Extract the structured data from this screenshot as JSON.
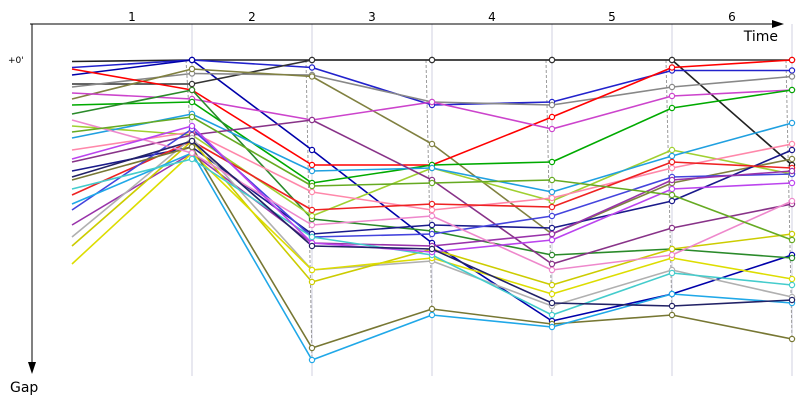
{
  "chart_data": {
    "type": "line",
    "title": "",
    "xlabel": "Time",
    "ylabel": "Gap",
    "y_zero_label": "+0'",
    "lap_labels": [
      "1",
      "2",
      "3",
      "4",
      "5",
      "6"
    ],
    "x": [
      0,
      1,
      2,
      3,
      4,
      5,
      6
    ],
    "ylim": [
      0,
      100
    ],
    "y_inverted": true,
    "grid": true,
    "series": [
      {
        "color": "#222222",
        "values": [
          0.5,
          0.0,
          0.0,
          0.0,
          0.0,
          0.0,
          35.0
        ]
      },
      {
        "color": "#2222cc",
        "values": [
          2.5,
          0.0,
          2.5,
          15.0,
          14.0,
          3.5,
          3.5
        ]
      },
      {
        "color": "#0000aa",
        "values": [
          5.0,
          0.0,
          30.0,
          61.0,
          87.0,
          78.0,
          65.0
        ]
      },
      {
        "color": "#333333",
        "values": [
          8.0,
          8.0,
          0.0,
          0.0,
          0.0,
          0.0,
          0.0
        ]
      },
      {
        "color": "#888888",
        "values": [
          9.0,
          4.5,
          5.0,
          14.0,
          15.0,
          9.0,
          5.5
        ]
      },
      {
        "color": "#808040",
        "values": [
          13.0,
          3.0,
          5.5,
          28.0,
          58.0,
          41.0,
          33.0
        ]
      },
      {
        "color": "#ff0000",
        "values": [
          3.0,
          10.0,
          35.0,
          35.0,
          19.0,
          2.5,
          0.0
        ]
      },
      {
        "color": "#cc44cc",
        "values": [
          11.0,
          13.0,
          20.0,
          14.0,
          23.0,
          12.0,
          10.0
        ]
      },
      {
        "color": "#00aa00",
        "values": [
          15.0,
          14.0,
          41.0,
          35.0,
          34.0,
          16.0,
          10.0
        ]
      },
      {
        "color": "#2a8a2a",
        "values": [
          18.0,
          10.0,
          53.0,
          57.0,
          65.0,
          63.0,
          66.0
        ]
      },
      {
        "color": "#a0d030",
        "values": [
          22.0,
          25.0,
          52.0,
          36.0,
          47.0,
          30.0,
          38.0
        ]
      },
      {
        "color": "#20a0e0",
        "values": [
          26.0,
          18.0,
          37.0,
          36.0,
          44.0,
          32.0,
          21.0
        ]
      },
      {
        "color": "#ff88aa",
        "values": [
          30.0,
          24.0,
          44.0,
          50.0,
          46.0,
          36.0,
          28.0
        ]
      },
      {
        "color": "#883388",
        "values": [
          34.0,
          25.0,
          20.0,
          40.0,
          68.0,
          56.0,
          48.0
        ]
      },
      {
        "color": "#1a1a8a",
        "values": [
          37.0,
          29.0,
          58.0,
          55.0,
          56.0,
          47.0,
          30.0
        ]
      },
      {
        "color": "#ee2222",
        "values": [
          45.0,
          27.0,
          50.0,
          48.0,
          49.0,
          34.0,
          36.0
        ]
      },
      {
        "color": "#4444dd",
        "values": [
          50.0,
          23.0,
          59.0,
          58.0,
          52.0,
          39.0,
          38.0
        ]
      },
      {
        "color": "#9933aa",
        "values": [
          55.0,
          31.0,
          61.0,
          62.0,
          58.0,
          40.0,
          37.0
        ]
      },
      {
        "color": "#b0b0b0",
        "values": [
          59.0,
          26.0,
          70.0,
          67.0,
          82.0,
          70.0,
          79.0
        ]
      },
      {
        "color": "#cccc00",
        "values": [
          62.0,
          27.0,
          74.0,
          63.0,
          75.0,
          63.0,
          58.0
        ]
      },
      {
        "color": "#dddd00",
        "values": [
          68.0,
          31.0,
          70.0,
          66.0,
          78.0,
          66.0,
          73.0
        ]
      },
      {
        "color": "#777733",
        "values": [
          40.0,
          29.0,
          96.0,
          83.0,
          88.0,
          85.0,
          93.0
        ]
      },
      {
        "color": "#20a8e8",
        "values": [
          48.0,
          31.0,
          100.0,
          85.0,
          89.0,
          78.0,
          81.0
        ]
      },
      {
        "color": "#44cccc",
        "values": [
          43.0,
          33.0,
          59.0,
          65.0,
          85.0,
          71.0,
          75.0
        ]
      },
      {
        "color": "#ee88cc",
        "values": [
          20.0,
          31.0,
          55.0,
          52.0,
          70.0,
          65.0,
          47.0
        ]
      },
      {
        "color": "#bb44ee",
        "values": [
          33.0,
          22.0,
          61.0,
          64.0,
          60.0,
          43.0,
          41.0
        ]
      },
      {
        "color": "#222266",
        "values": [
          39.0,
          27.0,
          62.0,
          63.0,
          81.0,
          82.0,
          80.0
        ]
      },
      {
        "color": "#66aa22",
        "values": [
          24.0,
          19.0,
          42.0,
          41.0,
          40.0,
          45.0,
          60.0
        ]
      }
    ]
  }
}
